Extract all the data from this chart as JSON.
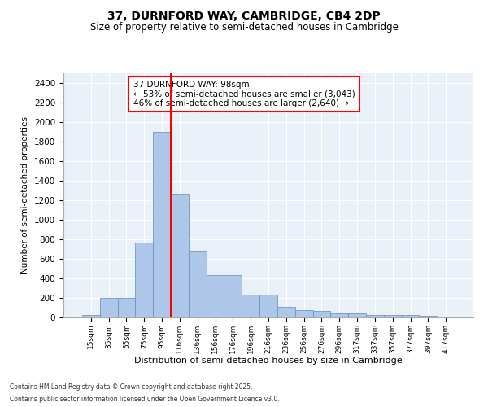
{
  "title1": "37, DURNFORD WAY, CAMBRIDGE, CB4 2DP",
  "title2": "Size of property relative to semi-detached houses in Cambridge",
  "xlabel": "Distribution of semi-detached houses by size in Cambridge",
  "ylabel": "Number of semi-detached properties",
  "categories": [
    "15sqm",
    "35sqm",
    "55sqm",
    "75sqm",
    "95sqm",
    "116sqm",
    "136sqm",
    "156sqm",
    "176sqm",
    "196sqm",
    "216sqm",
    "236sqm",
    "256sqm",
    "276sqm",
    "296sqm",
    "317sqm",
    "337sqm",
    "357sqm",
    "377sqm",
    "397sqm",
    "417sqm"
  ],
  "bar_values": [
    25,
    200,
    200,
    770,
    1900,
    1270,
    680,
    430,
    430,
    230,
    230,
    110,
    75,
    65,
    45,
    40,
    25,
    25,
    25,
    20,
    5
  ],
  "bar_color": "#aec6e8",
  "bar_edge_color": "#5a8fc0",
  "vline_x": 4.5,
  "vline_color": "red",
  "annotation_title": "37 DURNFORD WAY: 98sqm",
  "annotation_line1": "← 53% of semi-detached houses are smaller (3,043)",
  "annotation_line2": "46% of semi-detached houses are larger (2,640) →",
  "annotation_box_color": "red",
  "annotation_text_color": "black",
  "ylim": [
    0,
    2500
  ],
  "yticks": [
    0,
    200,
    400,
    600,
    800,
    1000,
    1200,
    1400,
    1600,
    1800,
    2000,
    2200,
    2400
  ],
  "background_color": "#eaf0f8",
  "grid_color": "#ffffff",
  "footer1": "Contains HM Land Registry data © Crown copyright and database right 2025.",
  "footer2": "Contains public sector information licensed under the Open Government Licence v3.0."
}
